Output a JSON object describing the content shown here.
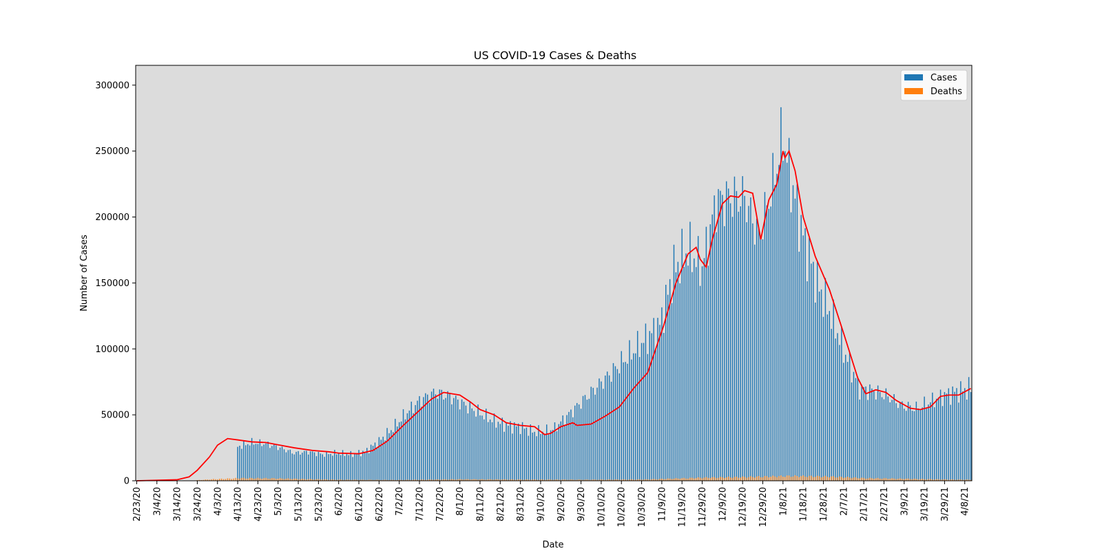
{
  "chart_data": {
    "type": "bar",
    "title": "US COVID-19 Cases & Deaths",
    "xlabel": "Date",
    "ylabel": "Number of Cases",
    "ylim": [
      0,
      315000
    ],
    "yticks": [
      0,
      50000,
      100000,
      150000,
      200000,
      250000,
      300000
    ],
    "xticks": [
      "2/23/20",
      "3/4/20",
      "3/14/20",
      "3/24/20",
      "4/3/20",
      "4/13/20",
      "4/23/20",
      "5/3/20",
      "5/13/20",
      "5/23/20",
      "6/2/20",
      "6/12/20",
      "6/22/20",
      "7/2/20",
      "7/12/20",
      "7/22/20",
      "8/1/20",
      "8/11/20",
      "8/21/20",
      "8/31/20",
      "9/10/20",
      "9/20/20",
      "9/30/20",
      "10/10/20",
      "10/20/20",
      "10/30/20",
      "11/9/20",
      "11/19/20",
      "11/29/20",
      "12/9/20",
      "12/19/20",
      "12/29/20",
      "1/8/21",
      "1/18/21",
      "1/28/21",
      "2/7/21",
      "2/17/21",
      "2/27/21",
      "3/9/21",
      "3/19/21",
      "3/29/21",
      "4/8/21"
    ],
    "x_start": "2/23/20",
    "x_end": "4/11/21",
    "legend": {
      "position": "top-right"
    },
    "grid": false,
    "background": "#dcdcdc",
    "series": [
      {
        "name": "Cases",
        "kind": "bar",
        "color": "#1f77b4",
        "anchors": [
          [
            "4/13/20",
            26000
          ],
          [
            "4/20/20",
            29000
          ],
          [
            "4/27/20",
            28000
          ],
          [
            "5/4/20",
            25000
          ],
          [
            "5/11/20",
            21000
          ],
          [
            "5/18/20",
            22000
          ],
          [
            "5/25/20",
            20000
          ],
          [
            "6/1/20",
            21000
          ],
          [
            "6/8/20",
            20000
          ],
          [
            "6/15/20",
            22000
          ],
          [
            "6/22/20",
            30000
          ],
          [
            "6/29/20",
            40000
          ],
          [
            "7/6/20",
            52000
          ],
          [
            "7/13/20",
            62000
          ],
          [
            "7/20/20",
            67000
          ],
          [
            "7/27/20",
            64000
          ],
          [
            "8/3/20",
            58000
          ],
          [
            "8/10/20",
            52000
          ],
          [
            "8/17/20",
            46000
          ],
          [
            "8/24/20",
            42000
          ],
          [
            "8/31/20",
            41000
          ],
          [
            "9/7/20",
            37000
          ],
          [
            "9/14/20",
            38000
          ],
          [
            "9/17/20",
            40000
          ],
          [
            "11/8/20",
            118000
          ],
          [
            "11/15/20",
            160000
          ],
          [
            "11/22/20",
            175000
          ],
          [
            "11/29/20",
            162000
          ],
          [
            "12/6/20",
            212000
          ],
          [
            "12/13/20",
            215000
          ],
          [
            "12/20/20",
            215000
          ],
          [
            "12/27/20",
            185000
          ],
          [
            "1/3/21",
            225000
          ],
          [
            "1/8/21",
            262000
          ],
          [
            "1/11/21",
            235000
          ],
          [
            "1/18/21",
            185000
          ],
          [
            "1/25/21",
            150000
          ],
          [
            "2/1/21",
            125000
          ],
          [
            "2/8/21",
            95000
          ],
          [
            "2/15/21",
            70000
          ],
          [
            "2/22/21",
            68000
          ],
          [
            "3/1/21",
            64000
          ],
          [
            "3/8/21",
            57000
          ],
          [
            "3/15/21",
            55000
          ],
          [
            "3/22/21",
            60000
          ],
          [
            "3/29/21",
            65000
          ],
          [
            "4/5/21",
            68000
          ],
          [
            "4/11/21",
            70000
          ]
        ]
      },
      {
        "name": "Deaths",
        "kind": "bar",
        "color": "#ff7f0e",
        "anchors": [
          [
            "3/20/20",
            100
          ],
          [
            "4/1/20",
            1200
          ],
          [
            "4/15/20",
            2000
          ],
          [
            "5/1/20",
            1800
          ],
          [
            "5/15/20",
            1300
          ],
          [
            "6/1/20",
            800
          ],
          [
            "7/1/20",
            600
          ],
          [
            "8/1/20",
            1100
          ],
          [
            "9/1/20",
            900
          ],
          [
            "10/1/20",
            800
          ],
          [
            "11/1/20",
            1000
          ],
          [
            "12/1/20",
            2400
          ],
          [
            "12/20/20",
            2800
          ],
          [
            "1/12/21",
            3600
          ],
          [
            "2/1/21",
            3100
          ],
          [
            "2/17/21",
            2000
          ],
          [
            "3/1/21",
            1700
          ],
          [
            "4/1/21",
            900
          ],
          [
            "4/11/21",
            800
          ]
        ]
      },
      {
        "kind": "line",
        "color": "#ff0000",
        "anchors": [
          [
            "2/23/20",
            0
          ],
          [
            "3/14/20",
            800
          ],
          [
            "3/20/20",
            3000
          ],
          [
            "3/24/20",
            8000
          ],
          [
            "3/30/20",
            18000
          ],
          [
            "4/3/20",
            27000
          ],
          [
            "4/8/20",
            32000
          ],
          [
            "4/13/20",
            31000
          ],
          [
            "4/20/20",
            29500
          ],
          [
            "4/27/20",
            29000
          ],
          [
            "5/4/20",
            27000
          ],
          [
            "5/11/20",
            25000
          ],
          [
            "5/20/20",
            23000
          ],
          [
            "5/28/20",
            22000
          ],
          [
            "6/2/20",
            21000
          ],
          [
            "6/12/20",
            20500
          ],
          [
            "6/19/20",
            23000
          ],
          [
            "6/26/20",
            30000
          ],
          [
            "7/4/20",
            42000
          ],
          [
            "7/11/20",
            52000
          ],
          [
            "7/18/20",
            62000
          ],
          [
            "7/24/20",
            67000
          ],
          [
            "8/1/20",
            65000
          ],
          [
            "8/6/20",
            60000
          ],
          [
            "8/11/20",
            54000
          ],
          [
            "8/18/20",
            50000
          ],
          [
            "8/24/20",
            44000
          ],
          [
            "8/31/20",
            42000
          ],
          [
            "9/7/20",
            41000
          ],
          [
            "9/12/20",
            35000
          ],
          [
            "9/15/20",
            36000
          ],
          [
            "9/20/20",
            41000
          ],
          [
            "9/26/20",
            44000
          ],
          [
            "9/28/20",
            42000
          ],
          [
            "10/5/20",
            43000
          ],
          [
            "10/12/20",
            49000
          ],
          [
            "10/19/20",
            56000
          ],
          [
            "10/26/20",
            70000
          ],
          [
            "11/2/20",
            82000
          ],
          [
            "11/6/20",
            100000
          ],
          [
            "11/10/20",
            118000
          ],
          [
            "11/16/20",
            150000
          ],
          [
            "11/22/20",
            172000
          ],
          [
            "11/26/20",
            177000
          ],
          [
            "11/28/20",
            168000
          ],
          [
            "12/1/20",
            162000
          ],
          [
            "12/4/20",
            183000
          ],
          [
            "12/9/20",
            210000
          ],
          [
            "12/13/20",
            216000
          ],
          [
            "12/17/20",
            215000
          ],
          [
            "12/20/20",
            220000
          ],
          [
            "12/24/20",
            218000
          ],
          [
            "12/28/20",
            183000
          ],
          [
            "1/1/21",
            213000
          ],
          [
            "1/5/21",
            225000
          ],
          [
            "1/8/21",
            250000
          ],
          [
            "1/9/21",
            245000
          ],
          [
            "1/11/21",
            250000
          ],
          [
            "1/14/21",
            235000
          ],
          [
            "1/18/21",
            200000
          ],
          [
            "1/24/21",
            170000
          ],
          [
            "1/31/21",
            145000
          ],
          [
            "2/7/21",
            112000
          ],
          [
            "2/14/21",
            78000
          ],
          [
            "2/18/21",
            66000
          ],
          [
            "2/23/21",
            69000
          ],
          [
            "2/28/21",
            67000
          ],
          [
            "3/5/21",
            61000
          ],
          [
            "3/12/21",
            55000
          ],
          [
            "3/17/21",
            54000
          ],
          [
            "3/22/21",
            56000
          ],
          [
            "3/27/21",
            64000
          ],
          [
            "3/31/21",
            65000
          ],
          [
            "4/5/21",
            65000
          ],
          [
            "4/11/21",
            70000
          ]
        ]
      }
    ]
  }
}
